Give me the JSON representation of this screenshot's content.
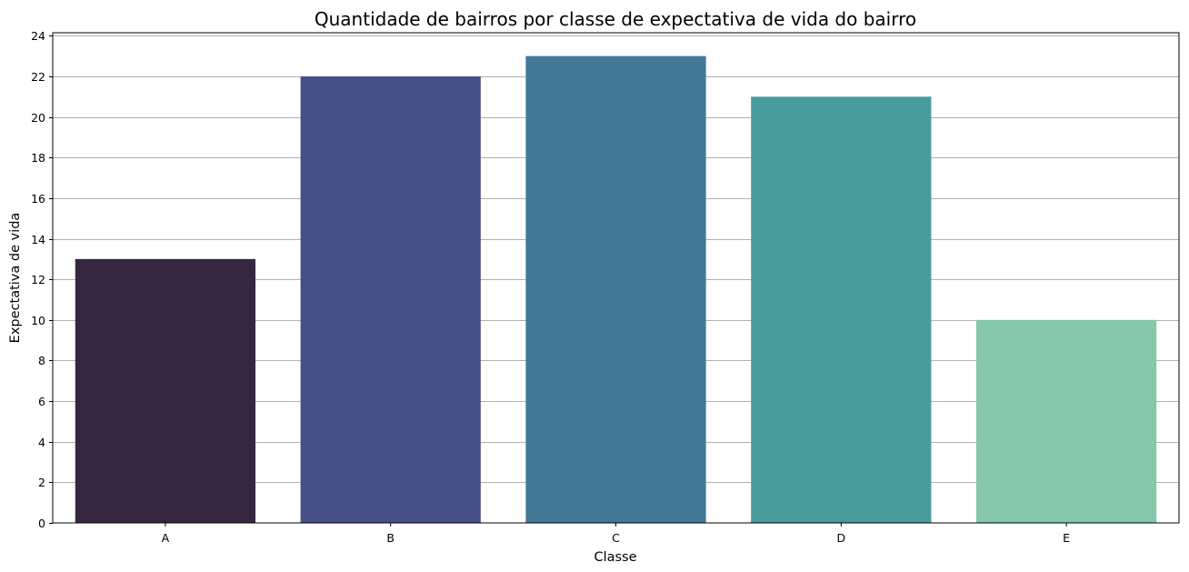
{
  "chart_data": {
    "type": "bar",
    "title": "Quantidade de bairros por classe de expectativa de vida do bairro",
    "xlabel": "Classe",
    "ylabel": "Expectativa de vida",
    "categories": [
      "A",
      "B",
      "C",
      "D",
      "E"
    ],
    "values": [
      13,
      22,
      23,
      21,
      10
    ],
    "colors": [
      "#35273f",
      "#475086",
      "#437896",
      "#489d9c",
      "#85c8aa"
    ],
    "ylim": [
      0,
      24.15
    ],
    "yticks": [
      0,
      2,
      4,
      6,
      8,
      10,
      12,
      14,
      16,
      18,
      20,
      22,
      24
    ],
    "grid": "y"
  }
}
